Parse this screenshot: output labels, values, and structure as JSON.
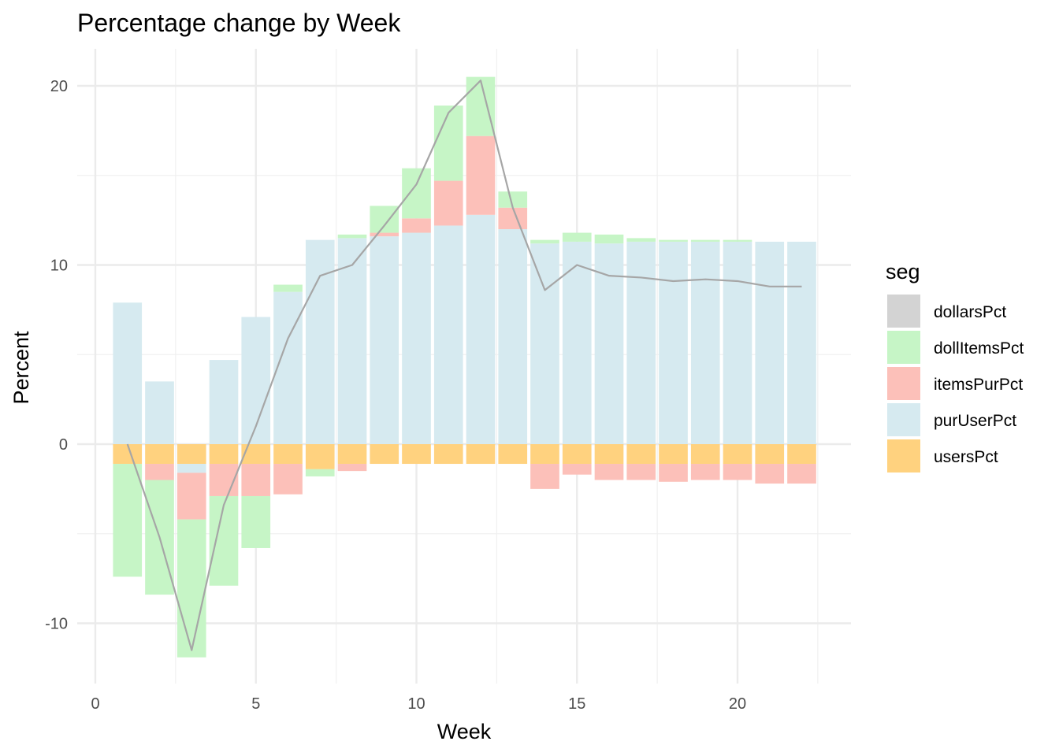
{
  "chart_data": {
    "type": "bar",
    "title": "Percentage change by Week",
    "xlabel": "Week",
    "ylabel": "Percent",
    "xlim": [
      0,
      23
    ],
    "ylim": [
      -13,
      22
    ],
    "x_ticks": [
      0,
      5,
      10,
      15,
      20
    ],
    "y_ticks": [
      -10,
      0,
      10,
      20
    ],
    "grid": true,
    "legend_placement": "right",
    "legend": {
      "title": "seg",
      "entries": [
        "dollarsPct",
        "dollItemsPct",
        "itemsPurPct",
        "purUserPct",
        "usersPct"
      ]
    },
    "colors": {
      "dollarsPct": "#d3d3d3",
      "dollItemsPct": "#c6f5c6",
      "itemsPurPct": "#fcc0b9",
      "purUserPct": "#d6eaf0",
      "usersPct": "#ffd27f",
      "line": "#a6a6a6"
    },
    "weeks": [
      1,
      2,
      3,
      4,
      5,
      6,
      7,
      8,
      9,
      10,
      11,
      12,
      13,
      14,
      15,
      16,
      17,
      18,
      19,
      20,
      21,
      22
    ],
    "series": [
      {
        "name": "usersPct",
        "values": [
          -1.1,
          -1.1,
          -1.1,
          -1.1,
          -1.1,
          -1.1,
          -1.4,
          -1.1,
          -1.1,
          -1.1,
          -1.1,
          -1.1,
          -1.1,
          -1.1,
          -1.1,
          -1.1,
          -1.1,
          -1.1,
          -1.1,
          -1.1,
          -1.1,
          -1.1
        ]
      },
      {
        "name": "purUserPct",
        "values": [
          7.9,
          3.5,
          -0.5,
          4.7,
          7.1,
          8.5,
          11.4,
          11.5,
          11.6,
          11.8,
          12.2,
          12.8,
          12.0,
          11.2,
          11.3,
          11.2,
          11.3,
          11.3,
          11.3,
          11.3,
          11.3,
          11.3
        ]
      },
      {
        "name": "itemsPurPct",
        "values": [
          0,
          -0.9,
          -2.6,
          -1.8,
          -1.8,
          -1.7,
          0,
          -0.4,
          0.2,
          0.8,
          2.5,
          4.4,
          1.2,
          -1.4,
          -0.6,
          -0.9,
          -0.9,
          -1.0,
          -0.9,
          -0.9,
          -1.1,
          -1.1
        ]
      },
      {
        "name": "dollItemsPct",
        "values": [
          -6.3,
          -6.4,
          -7.7,
          -5.0,
          -2.9,
          0.4,
          -0.4,
          0.2,
          1.5,
          2.8,
          4.2,
          3.3,
          0.9,
          0.2,
          0.5,
          0.5,
          0.2,
          0.1,
          0.1,
          0.1,
          0,
          0
        ]
      }
    ],
    "line_series": {
      "values": [
        0,
        -5.2,
        -11.5,
        -3.4,
        1.0,
        5.9,
        9.4,
        10.0,
        12.2,
        14.5,
        18.5,
        20.3,
        13.2,
        8.6,
        10.0,
        9.4,
        9.3,
        9.1,
        9.2,
        9.1,
        8.8,
        8.8
      ]
    }
  }
}
